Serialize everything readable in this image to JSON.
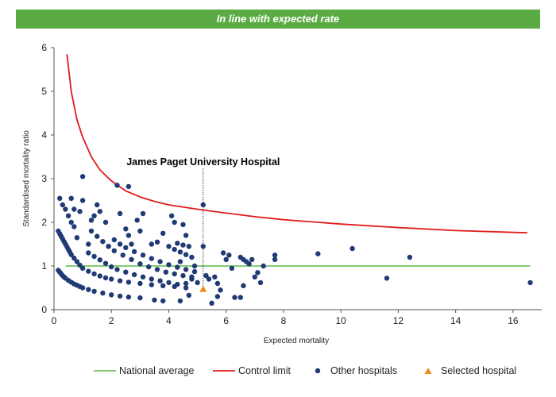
{
  "header": {
    "title": "In line with expected rate"
  },
  "chart_data": {
    "type": "scatter",
    "xlabel": "Expected mortality",
    "ylabel": "Standardised mortality ratio",
    "xlim": [
      0,
      17
    ],
    "ylim": [
      0,
      6
    ],
    "xticks": [
      "0",
      "2",
      "4",
      "6",
      "8",
      "10",
      "12",
      "14",
      "16"
    ],
    "yticks": [
      "0",
      "1",
      "2",
      "3",
      "4",
      "5",
      "6"
    ],
    "grid": false,
    "legend_position": "bottom",
    "annotation": {
      "text": "James Paget University Hospital",
      "x": 5.2,
      "y": 0.47
    },
    "colors": {
      "national_average": "#5bb845",
      "control_limit": "#e01b1b",
      "other": "#1f3a75",
      "selected": "#f28a1a"
    },
    "national_average": {
      "name": "National average",
      "y": 1
    },
    "control_limit": {
      "name": "Control limit",
      "x": [
        0.45,
        0.6,
        0.8,
        1.0,
        1.3,
        1.6,
        2.0,
        2.5,
        3.0,
        3.5,
        4.0,
        5.0,
        6.0,
        7.0,
        8.0,
        10.0,
        12.0,
        14.0,
        16.5
      ],
      "y": [
        5.85,
        5.0,
        4.35,
        3.95,
        3.5,
        3.2,
        2.95,
        2.72,
        2.58,
        2.48,
        2.4,
        2.3,
        2.21,
        2.13,
        2.06,
        1.96,
        1.88,
        1.81,
        1.76
      ]
    },
    "selected": {
      "name": "Selected hospital",
      "points": [
        [
          5.2,
          0.47
        ]
      ]
    },
    "other": {
      "name": "Other hospitals",
      "points": [
        [
          0.2,
          2.55
        ],
        [
          0.3,
          2.4
        ],
        [
          0.4,
          2.3
        ],
        [
          0.5,
          2.15
        ],
        [
          0.6,
          2.55
        ],
        [
          0.7,
          2.3
        ],
        [
          0.6,
          2.0
        ],
        [
          0.7,
          1.9
        ],
        [
          0.8,
          1.65
        ],
        [
          0.9,
          2.25
        ],
        [
          1.0,
          2.5
        ],
        [
          1.0,
          3.05
        ],
        [
          1.2,
          1.5
        ],
        [
          1.3,
          2.05
        ],
        [
          1.4,
          2.15
        ],
        [
          1.5,
          2.4
        ],
        [
          1.6,
          2.25
        ],
        [
          1.8,
          2.0
        ],
        [
          1.9,
          1.45
        ],
        [
          2.2,
          2.85
        ],
        [
          2.6,
          2.82
        ],
        [
          2.3,
          2.2
        ],
        [
          2.5,
          1.85
        ],
        [
          2.6,
          1.7
        ],
        [
          2.7,
          1.5
        ],
        [
          2.9,
          2.05
        ],
        [
          3.0,
          1.8
        ],
        [
          3.1,
          2.2
        ],
        [
          3.4,
          1.5
        ],
        [
          3.6,
          1.55
        ],
        [
          3.8,
          1.75
        ],
        [
          4.1,
          2.15
        ],
        [
          4.2,
          2.0
        ],
        [
          4.5,
          1.95
        ],
        [
          4.6,
          1.7
        ],
        [
          0.15,
          1.8
        ],
        [
          0.2,
          1.74
        ],
        [
          0.25,
          1.68
        ],
        [
          0.3,
          1.62
        ],
        [
          0.35,
          1.56
        ],
        [
          0.4,
          1.5
        ],
        [
          0.45,
          1.44
        ],
        [
          0.5,
          1.38
        ],
        [
          0.55,
          1.32
        ],
        [
          0.6,
          1.26
        ],
        [
          0.7,
          1.18
        ],
        [
          0.8,
          1.1
        ],
        [
          0.9,
          1.02
        ],
        [
          1.0,
          0.95
        ],
        [
          1.2,
          0.88
        ],
        [
          1.4,
          0.82
        ],
        [
          1.6,
          0.77
        ],
        [
          1.8,
          0.73
        ],
        [
          2.0,
          0.7
        ],
        [
          2.3,
          0.66
        ],
        [
          2.6,
          0.63
        ],
        [
          3.0,
          0.6
        ],
        [
          3.4,
          0.57
        ],
        [
          3.8,
          0.55
        ],
        [
          4.2,
          0.53
        ],
        [
          4.6,
          0.5
        ],
        [
          0.15,
          0.9
        ],
        [
          0.2,
          0.86
        ],
        [
          0.25,
          0.82
        ],
        [
          0.3,
          0.78
        ],
        [
          0.35,
          0.75
        ],
        [
          0.4,
          0.72
        ],
        [
          0.5,
          0.67
        ],
        [
          0.6,
          0.63
        ],
        [
          0.7,
          0.59
        ],
        [
          0.8,
          0.56
        ],
        [
          0.9,
          0.53
        ],
        [
          1.0,
          0.5
        ],
        [
          1.2,
          0.46
        ],
        [
          1.4,
          0.42
        ],
        [
          1.7,
          0.38
        ],
        [
          2.0,
          0.34
        ],
        [
          2.3,
          0.31
        ],
        [
          2.6,
          0.29
        ],
        [
          3.0,
          0.27
        ],
        [
          1.3,
          1.8
        ],
        [
          1.5,
          1.68
        ],
        [
          1.7,
          1.56
        ],
        [
          1.9,
          1.45
        ],
        [
          2.1,
          1.35
        ],
        [
          2.4,
          1.25
        ],
        [
          2.7,
          1.15
        ],
        [
          3.0,
          1.05
        ],
        [
          3.3,
          0.98
        ],
        [
          3.6,
          0.92
        ],
        [
          3.9,
          0.86
        ],
        [
          4.2,
          0.82
        ],
        [
          4.5,
          0.78
        ],
        [
          4.8,
          0.75
        ],
        [
          1.2,
          1.3
        ],
        [
          1.4,
          1.22
        ],
        [
          1.6,
          1.14
        ],
        [
          1.8,
          1.06
        ],
        [
          2.0,
          0.98
        ],
        [
          2.2,
          0.92
        ],
        [
          2.5,
          0.86
        ],
        [
          2.8,
          0.8
        ],
        [
          3.1,
          0.75
        ],
        [
          3.4,
          0.7
        ],
        [
          3.7,
          0.66
        ],
        [
          4.0,
          0.62
        ],
        [
          4.3,
          0.58
        ],
        [
          2.1,
          1.6
        ],
        [
          2.3,
          1.5
        ],
        [
          2.5,
          1.42
        ],
        [
          2.8,
          1.33
        ],
        [
          3.1,
          1.25
        ],
        [
          3.4,
          1.17
        ],
        [
          3.7,
          1.1
        ],
        [
          4.0,
          1.03
        ],
        [
          4.3,
          0.97
        ],
        [
          4.6,
          0.92
        ],
        [
          4.9,
          0.87
        ],
        [
          4.0,
          1.45
        ],
        [
          4.2,
          1.38
        ],
        [
          4.4,
          1.32
        ],
        [
          4.6,
          1.26
        ],
        [
          4.8,
          1.2
        ],
        [
          4.3,
          1.52
        ],
        [
          4.5,
          1.48
        ],
        [
          4.7,
          1.45
        ],
        [
          4.4,
          1.1
        ],
        [
          4.9,
          1.0
        ],
        [
          4.6,
          0.6
        ],
        [
          4.8,
          0.7
        ],
        [
          5.0,
          0.62
        ],
        [
          4.7,
          0.33
        ],
        [
          4.4,
          0.2
        ],
        [
          3.5,
          0.22
        ],
        [
          3.8,
          0.2
        ],
        [
          5.2,
          2.4
        ],
        [
          5.2,
          1.45
        ],
        [
          5.3,
          0.78
        ],
        [
          5.6,
          0.75
        ],
        [
          5.4,
          0.7
        ],
        [
          5.5,
          0.15
        ],
        [
          5.7,
          0.3
        ],
        [
          5.8,
          0.45
        ],
        [
          5.7,
          0.6
        ],
        [
          5.9,
          1.3
        ],
        [
          6.1,
          1.25
        ],
        [
          6.0,
          1.15
        ],
        [
          6.2,
          0.95
        ],
        [
          6.3,
          0.28
        ],
        [
          6.5,
          0.28
        ],
        [
          6.5,
          1.2
        ],
        [
          6.6,
          1.15
        ],
        [
          6.7,
          1.1
        ],
        [
          6.6,
          0.55
        ],
        [
          6.8,
          1.05
        ],
        [
          6.9,
          1.15
        ],
        [
          7.0,
          0.75
        ],
        [
          7.1,
          0.85
        ],
        [
          7.2,
          0.62
        ],
        [
          7.3,
          1.0
        ],
        [
          7.7,
          1.25
        ],
        [
          7.7,
          1.15
        ],
        [
          9.2,
          1.28
        ],
        [
          10.4,
          1.4
        ],
        [
          11.6,
          0.72
        ],
        [
          12.4,
          1.2
        ],
        [
          16.6,
          0.62
        ]
      ]
    }
  }
}
